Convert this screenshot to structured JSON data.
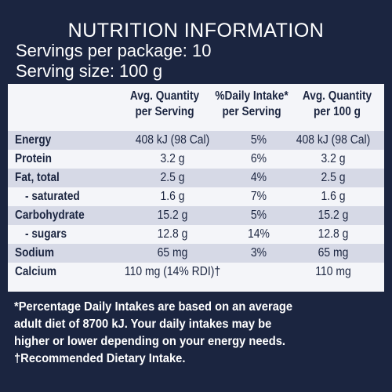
{
  "title": "NUTRITION INFORMATION",
  "servings_per_package": "Servings per package: 10",
  "serving_size": "Serving size: 100 g",
  "headers": {
    "col1": [
      "Avg. Quantity",
      "per Serving"
    ],
    "col2": [
      "%Daily Intake*",
      "per Serving"
    ],
    "col3": [
      "Avg. Quantity",
      "per 100 g"
    ]
  },
  "rows": [
    {
      "name": "Energy",
      "per_serving": "408 kJ (98 Cal)",
      "daily_intake": "5%",
      "per_100g": "408 kJ (98 Cal)"
    },
    {
      "name": "Protein",
      "per_serving": "3.2 g",
      "daily_intake": "6%",
      "per_100g": "3.2 g"
    },
    {
      "name": "Fat, total",
      "per_serving": "2.5 g",
      "daily_intake": "4%",
      "per_100g": "2.5 g"
    },
    {
      "name": "- saturated",
      "per_serving": "1.6 g",
      "daily_intake": "7%",
      "per_100g": "1.6 g"
    },
    {
      "name": "Carbohydrate",
      "per_serving": "15.2 g",
      "daily_intake": "5%",
      "per_100g": "15.2 g"
    },
    {
      "name": "- sugars",
      "per_serving": "12.8 g",
      "daily_intake": "14%",
      "per_100g": "12.8 g"
    },
    {
      "name": "Sodium",
      "per_serving": "65 mg",
      "daily_intake": "3%",
      "per_100g": "65 mg"
    },
    {
      "name": "Calcium",
      "per_serving": "110 mg (14% RDI)†",
      "daily_intake": "",
      "per_100g": "110 mg"
    }
  ],
  "footnotes": {
    "line1": "*Percentage Daily Intakes are based on an average",
    "line2": "adult diet of 8700 kJ. Your daily intakes may be",
    "line3": "higher or lower depending on your energy needs.",
    "line4": "†Recommended Dietary Intake."
  },
  "colors": {
    "background": "#1b2540",
    "table": "#f4f5f9",
    "shade": "#d6d9e6"
  }
}
